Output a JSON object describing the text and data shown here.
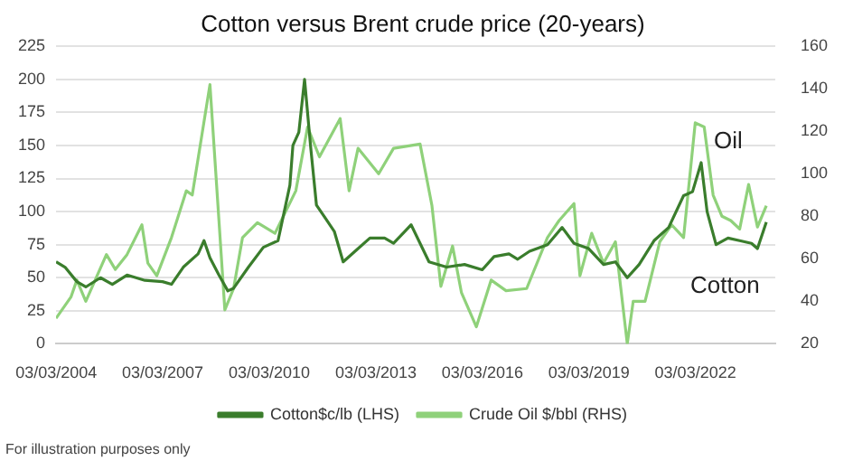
{
  "chart_data": {
    "type": "line",
    "title": "Cotton versus Brent crude price (20-years)",
    "xlim": [
      "2004-03-01",
      "2024-06-01"
    ],
    "xticks": [
      {
        "value": "2004-03-03",
        "label": "03/03/2004"
      },
      {
        "value": "2007-03-03",
        "label": "03/03/2007"
      },
      {
        "value": "2010-03-03",
        "label": "03/03/2010"
      },
      {
        "value": "2013-03-03",
        "label": "03/03/2013"
      },
      {
        "value": "2016-03-03",
        "label": "03/03/2016"
      },
      {
        "value": "2019-03-03",
        "label": "03/03/2019"
      },
      {
        "value": "2022-03-03",
        "label": "03/03/2022"
      }
    ],
    "ylim": [
      0,
      225
    ],
    "yticks": [
      0,
      25,
      50,
      75,
      100,
      125,
      150,
      175,
      200,
      225
    ],
    "y2lim": [
      20,
      160
    ],
    "y2ticks": [
      20,
      40,
      60,
      80,
      100,
      120,
      140,
      160
    ],
    "series": [
      {
        "name": "Cotton$c/lb (LHS)",
        "color": "#3a7d2c",
        "x": [
          "2004-03",
          "2004-06",
          "2004-10",
          "2005-01",
          "2005-06",
          "2005-10",
          "2006-03",
          "2006-09",
          "2007-03",
          "2007-06",
          "2007-10",
          "2008-03",
          "2008-05",
          "2008-07",
          "2008-10",
          "2009-01",
          "2009-03",
          "2009-08",
          "2010-01",
          "2010-06",
          "2010-10",
          "2010-11",
          "2011-01",
          "2011-03",
          "2011-05",
          "2011-07",
          "2011-10",
          "2012-01",
          "2012-04",
          "2012-08",
          "2013-01",
          "2013-06",
          "2013-09",
          "2014-03",
          "2014-09",
          "2015-03",
          "2015-09",
          "2016-03",
          "2016-07",
          "2016-12",
          "2017-03",
          "2017-07",
          "2018-01",
          "2018-06",
          "2018-10",
          "2019-03",
          "2019-08",
          "2019-12",
          "2020-04",
          "2020-08",
          "2021-01",
          "2021-06",
          "2021-11",
          "2022-02",
          "2022-05",
          "2022-07",
          "2022-10",
          "2023-02",
          "2023-06",
          "2023-10",
          "2023-12",
          "2024-03"
        ],
        "values": [
          62,
          58,
          47,
          43,
          50,
          45,
          52,
          48,
          47,
          45,
          58,
          68,
          78,
          65,
          52,
          40,
          42,
          58,
          73,
          78,
          120,
          150,
          160,
          200,
          150,
          105,
          95,
          85,
          62,
          70,
          80,
          80,
          76,
          90,
          62,
          58,
          60,
          56,
          66,
          68,
          64,
          70,
          75,
          88,
          76,
          72,
          60,
          62,
          50,
          60,
          78,
          88,
          112,
          115,
          137,
          100,
          75,
          80,
          78,
          76,
          72,
          92
        ]
      },
      {
        "name": "Crude Oil $/bbl (RHS)",
        "color": "#8fd17a",
        "axis": "y2",
        "x": [
          "2004-03",
          "2004-08",
          "2004-10",
          "2005-01",
          "2005-08",
          "2005-11",
          "2006-03",
          "2006-08",
          "2006-10",
          "2007-01",
          "2007-06",
          "2007-11",
          "2008-01",
          "2008-07",
          "2008-12",
          "2009-03",
          "2009-06",
          "2009-11",
          "2010-05",
          "2010-12",
          "2011-04",
          "2011-08",
          "2012-03",
          "2012-06",
          "2012-09",
          "2013-04",
          "2013-09",
          "2014-06",
          "2014-10",
          "2015-01",
          "2015-05",
          "2015-08",
          "2016-01",
          "2016-06",
          "2016-11",
          "2017-06",
          "2018-01",
          "2018-05",
          "2018-10",
          "2018-12",
          "2019-04",
          "2019-08",
          "2019-12",
          "2020-04",
          "2020-06",
          "2020-10",
          "2021-03",
          "2021-07",
          "2021-11",
          "2022-03",
          "2022-06",
          "2022-09",
          "2022-12",
          "2023-03",
          "2023-06",
          "2023-09",
          "2023-12",
          "2024-03"
        ],
        "values": [
          32,
          42,
          50,
          40,
          62,
          55,
          62,
          76,
          58,
          52,
          70,
          92,
          90,
          142,
          36,
          46,
          70,
          77,
          72,
          92,
          122,
          108,
          126,
          92,
          112,
          100,
          112,
          114,
          85,
          47,
          66,
          44,
          28,
          50,
          45,
          46,
          70,
          78,
          86,
          52,
          72,
          58,
          68,
          20,
          40,
          40,
          68,
          76,
          70,
          124,
          122,
          90,
          80,
          78,
          74,
          95,
          75,
          85
        ]
      }
    ],
    "grid": "y",
    "legend": "bottom",
    "marker": "none",
    "line_style": "solid",
    "annotations": [
      "Oil",
      "Cotton",
      "For illustration purposes only"
    ]
  }
}
